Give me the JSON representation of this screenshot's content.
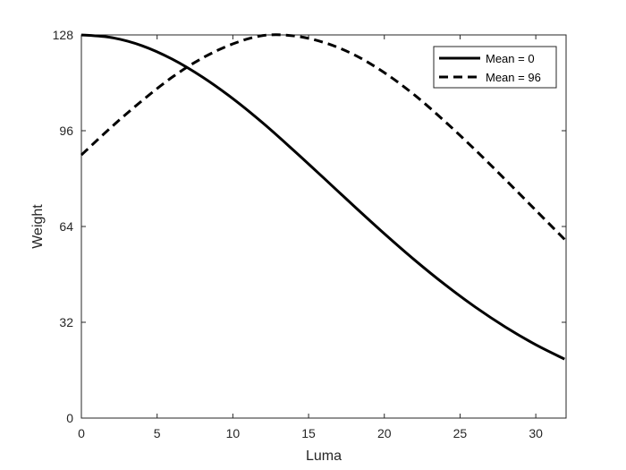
{
  "chart_data": {
    "type": "line",
    "title": "",
    "xlabel": "Luma",
    "ylabel": "Weight",
    "xlim": [
      0,
      32
    ],
    "ylim": [
      0,
      128
    ],
    "xticks": [
      0,
      5,
      10,
      15,
      20,
      25,
      30
    ],
    "yticks": [
      0,
      32,
      64,
      96,
      128
    ],
    "grid": false,
    "legend_position": "top-right",
    "colors": {
      "series": "#000000",
      "axis": "#262626"
    },
    "x": [
      0,
      2,
      4,
      6,
      8,
      10,
      12,
      14,
      16,
      18,
      20,
      22,
      24,
      26,
      28,
      30,
      31.9
    ],
    "series": [
      {
        "name": "Mean = 0",
        "style": "solid",
        "values": [
          128,
          127.1,
          124.4,
          119.9,
          113.9,
          106.7,
          98.5,
          89.5,
          80.2,
          70.8,
          61.6,
          52.8,
          44.6,
          37.1,
          30.4,
          24.5,
          19.7
        ]
      },
      {
        "name": "Mean = 96",
        "style": "dashed",
        "values": [
          87.9,
          97.3,
          106.0,
          113.9,
          120.3,
          125.0,
          127.8,
          127.7,
          125.5,
          121.4,
          115.4,
          107.9,
          99.1,
          89.6,
          79.6,
          69.4,
          59.7
        ]
      }
    ]
  }
}
